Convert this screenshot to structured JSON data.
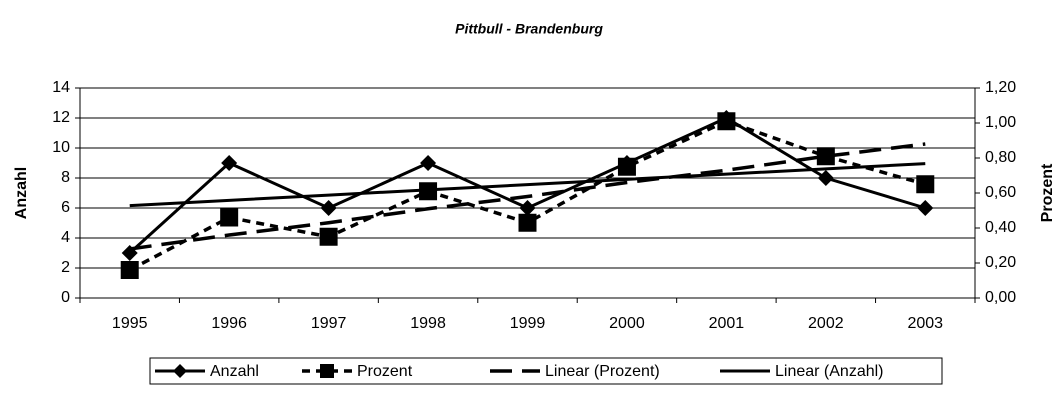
{
  "chart_data": {
    "type": "line",
    "title": "Pittbull - Brandenburg",
    "y_label": "Anzahl",
    "y2_label": "Prozent",
    "categories": [
      "1995",
      "1996",
      "1997",
      "1998",
      "1999",
      "2000",
      "2001",
      "2002",
      "2003"
    ],
    "series": [
      {
        "name": "Anzahl",
        "color": "#000000",
        "style": "solid",
        "marker": "diamond",
        "values": [
          3,
          9,
          6,
          9,
          6,
          9,
          12,
          8,
          6
        ]
      },
      {
        "name": "Prozent",
        "color": "#000000",
        "style": "dotted",
        "marker": "square",
        "axis": "y2",
        "values": [
          0.16,
          0.46,
          0.35,
          0.61,
          0.43,
          0.75,
          1.01,
          0.81,
          0.65
        ]
      },
      {
        "name": "Linear (Prozent)",
        "color": "#000000",
        "style": "dashed",
        "axis": "y2",
        "values": [
          0.28,
          0.36,
          0.43,
          0.51,
          0.58,
          0.66,
          0.73,
          0.81,
          0.88
        ]
      },
      {
        "name": "Linear (Anzahl)",
        "color": "#000000",
        "style": "solid",
        "values": [
          6.16,
          6.51,
          6.86,
          7.21,
          7.56,
          7.91,
          8.26,
          8.61,
          8.96
        ]
      }
    ],
    "ylim": [
      0,
      14
    ],
    "yticks": [
      0,
      2,
      4,
      6,
      8,
      10,
      12,
      14
    ],
    "y2lim": [
      0,
      1.2
    ],
    "y2ticks": [
      {
        "value": 0,
        "label": "0,00"
      },
      {
        "value": 0.2,
        "label": "0,20"
      },
      {
        "value": 0.4,
        "label": "0,40"
      },
      {
        "value": 0.6,
        "label": "0,60"
      },
      {
        "value": 0.8,
        "label": "0,80"
      },
      {
        "value": 1.0,
        "label": "1,00"
      },
      {
        "value": 1.2,
        "label": "1,20"
      }
    ],
    "grid": true,
    "legend": "bottom"
  }
}
